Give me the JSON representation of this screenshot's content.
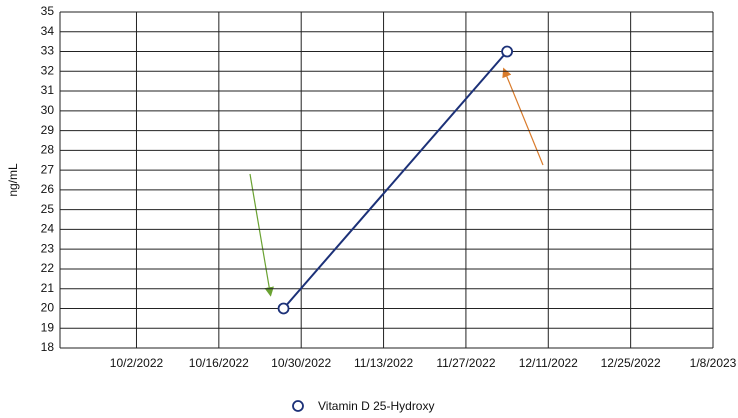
{
  "chart_data": {
    "type": "line",
    "y_label": "ng/mL",
    "x": [
      "10/27/2022",
      "12/4/2022"
    ],
    "xlim": [
      "9/19/2022",
      "1/8/2023"
    ],
    "xticks": [
      "10/2/2022",
      "10/16/2022",
      "10/30/2022",
      "11/13/2022",
      "11/27/2022",
      "12/11/2022",
      "12/25/2022",
      "1/8/2023"
    ],
    "ylim": [
      18,
      35
    ],
    "yticks": [
      18,
      19,
      20,
      21,
      22,
      23,
      24,
      25,
      26,
      27,
      28,
      29,
      30,
      31,
      32,
      33,
      34,
      35
    ],
    "grid": true,
    "legend": "bottom",
    "series": [
      {
        "name": "Vitamin D 25-Hydroxy",
        "color": "#1c3178",
        "values": [
          20,
          33
        ]
      }
    ]
  }
}
